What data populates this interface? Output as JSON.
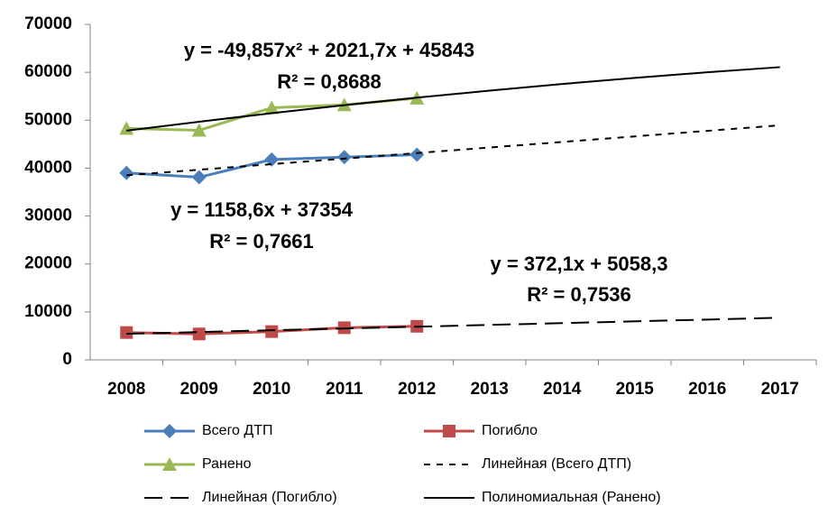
{
  "chart_data": {
    "type": "line",
    "categories": [
      "2008",
      "2009",
      "2010",
      "2011",
      "2012",
      "2013",
      "2014",
      "2015",
      "2016",
      "2017"
    ],
    "ylim": [
      0,
      70000
    ],
    "yticks": [
      0,
      10000,
      20000,
      30000,
      40000,
      50000,
      60000,
      70000
    ],
    "series": [
      {
        "name": "Всего ДТП",
        "color": "#4a7ebb",
        "marker": "diamond",
        "values": [
          39000,
          38100,
          41800,
          42300,
          42800,
          null,
          null,
          null,
          null,
          null
        ]
      },
      {
        "name": "Погибло",
        "color": "#be4b48",
        "marker": "square",
        "values": [
          5700,
          5400,
          5900,
          6700,
          7000,
          null,
          null,
          null,
          null,
          null
        ]
      },
      {
        "name": "Ранено",
        "color": "#98b954",
        "marker": "triangle",
        "values": [
          48300,
          47900,
          52600,
          53200,
          54600,
          null,
          null,
          null,
          null,
          null
        ]
      },
      {
        "name": "Линейная (Всего ДТП)",
        "color": "#000000",
        "dash": "short",
        "values": [
          38513,
          39671,
          40830,
          41988,
          43147,
          44306,
          45464,
          46623,
          47781,
          48940
        ]
      },
      {
        "name": "Линейная (Погибло)",
        "color": "#000000",
        "dash": "long",
        "values": [
          5430,
          5803,
          6175,
          6547,
          6919,
          7291,
          7663,
          8035,
          8407,
          8779
        ]
      },
      {
        "name": "Полиномиальная (Ранено)",
        "color": "#000000",
        "dash": "solid",
        "values": [
          47815,
          49687,
          51459,
          53132,
          54705,
          56178,
          57552,
          58826,
          60000,
          61074
        ]
      }
    ],
    "annotations": [
      "y = -49,857x² + 2021,7x + 45843",
      "R² = 0,8688",
      "y = 1158,6x + 37354",
      "R² = 0,7661",
      "y = 372,1x + 5058,3",
      "R² = 0,7536"
    ]
  }
}
